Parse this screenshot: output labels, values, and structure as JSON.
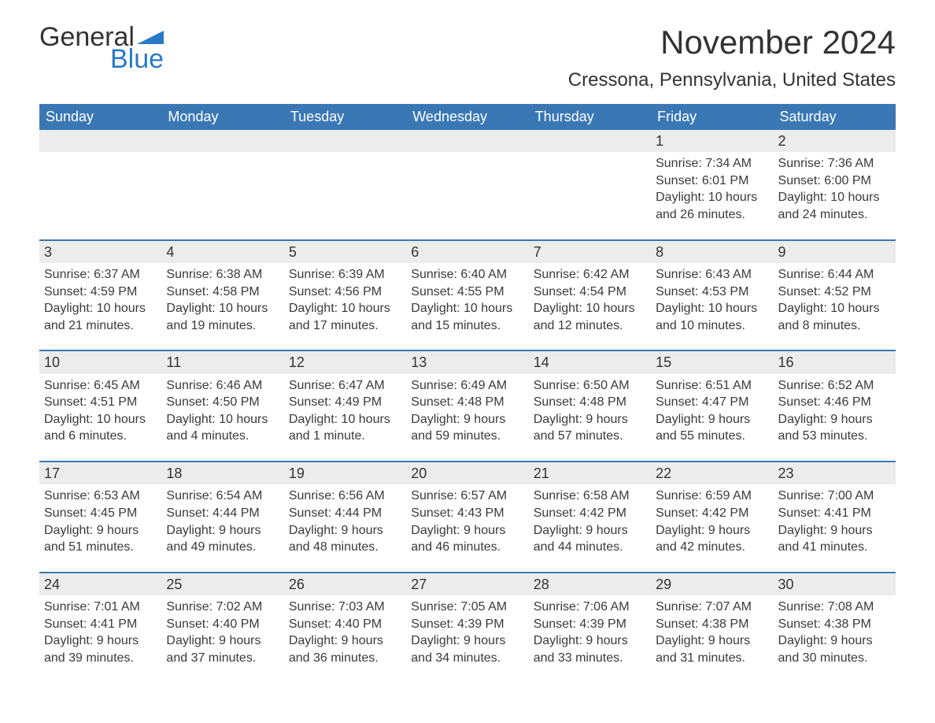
{
  "logo": {
    "text_top": "General",
    "text_bottom": "Blue",
    "flag_color": "#2979c9"
  },
  "title": "November 2024",
  "location": "Cressona, Pennsylvania, United States",
  "day_headers": [
    "Sunday",
    "Monday",
    "Tuesday",
    "Wednesday",
    "Thursday",
    "Friday",
    "Saturday"
  ],
  "colors": {
    "header_bg": "#3a78b5",
    "header_text": "#ffffff",
    "day_bar_bg": "#ececec",
    "day_bar_border": "#3a78b5",
    "text": "#3a3a3a",
    "logo_blue": "#2979c9",
    "background": "#ffffff"
  },
  "typography": {
    "title_fontsize": 42,
    "location_fontsize": 24,
    "header_fontsize": 18,
    "daynum_fontsize": 18,
    "body_fontsize": 16,
    "logo_fontsize": 34
  },
  "weeks": [
    [
      null,
      null,
      null,
      null,
      null,
      {
        "day": "1",
        "sunrise": "Sunrise: 7:34 AM",
        "sunset": "Sunset: 6:01 PM",
        "daylight1": "Daylight: 10 hours",
        "daylight2": "and 26 minutes."
      },
      {
        "day": "2",
        "sunrise": "Sunrise: 7:36 AM",
        "sunset": "Sunset: 6:00 PM",
        "daylight1": "Daylight: 10 hours",
        "daylight2": "and 24 minutes."
      }
    ],
    [
      {
        "day": "3",
        "sunrise": "Sunrise: 6:37 AM",
        "sunset": "Sunset: 4:59 PM",
        "daylight1": "Daylight: 10 hours",
        "daylight2": "and 21 minutes."
      },
      {
        "day": "4",
        "sunrise": "Sunrise: 6:38 AM",
        "sunset": "Sunset: 4:58 PM",
        "daylight1": "Daylight: 10 hours",
        "daylight2": "and 19 minutes."
      },
      {
        "day": "5",
        "sunrise": "Sunrise: 6:39 AM",
        "sunset": "Sunset: 4:56 PM",
        "daylight1": "Daylight: 10 hours",
        "daylight2": "and 17 minutes."
      },
      {
        "day": "6",
        "sunrise": "Sunrise: 6:40 AM",
        "sunset": "Sunset: 4:55 PM",
        "daylight1": "Daylight: 10 hours",
        "daylight2": "and 15 minutes."
      },
      {
        "day": "7",
        "sunrise": "Sunrise: 6:42 AM",
        "sunset": "Sunset: 4:54 PM",
        "daylight1": "Daylight: 10 hours",
        "daylight2": "and 12 minutes."
      },
      {
        "day": "8",
        "sunrise": "Sunrise: 6:43 AM",
        "sunset": "Sunset: 4:53 PM",
        "daylight1": "Daylight: 10 hours",
        "daylight2": "and 10 minutes."
      },
      {
        "day": "9",
        "sunrise": "Sunrise: 6:44 AM",
        "sunset": "Sunset: 4:52 PM",
        "daylight1": "Daylight: 10 hours",
        "daylight2": "and 8 minutes."
      }
    ],
    [
      {
        "day": "10",
        "sunrise": "Sunrise: 6:45 AM",
        "sunset": "Sunset: 4:51 PM",
        "daylight1": "Daylight: 10 hours",
        "daylight2": "and 6 minutes."
      },
      {
        "day": "11",
        "sunrise": "Sunrise: 6:46 AM",
        "sunset": "Sunset: 4:50 PM",
        "daylight1": "Daylight: 10 hours",
        "daylight2": "and 4 minutes."
      },
      {
        "day": "12",
        "sunrise": "Sunrise: 6:47 AM",
        "sunset": "Sunset: 4:49 PM",
        "daylight1": "Daylight: 10 hours",
        "daylight2": "and 1 minute."
      },
      {
        "day": "13",
        "sunrise": "Sunrise: 6:49 AM",
        "sunset": "Sunset: 4:48 PM",
        "daylight1": "Daylight: 9 hours",
        "daylight2": "and 59 minutes."
      },
      {
        "day": "14",
        "sunrise": "Sunrise: 6:50 AM",
        "sunset": "Sunset: 4:48 PM",
        "daylight1": "Daylight: 9 hours",
        "daylight2": "and 57 minutes."
      },
      {
        "day": "15",
        "sunrise": "Sunrise: 6:51 AM",
        "sunset": "Sunset: 4:47 PM",
        "daylight1": "Daylight: 9 hours",
        "daylight2": "and 55 minutes."
      },
      {
        "day": "16",
        "sunrise": "Sunrise: 6:52 AM",
        "sunset": "Sunset: 4:46 PM",
        "daylight1": "Daylight: 9 hours",
        "daylight2": "and 53 minutes."
      }
    ],
    [
      {
        "day": "17",
        "sunrise": "Sunrise: 6:53 AM",
        "sunset": "Sunset: 4:45 PM",
        "daylight1": "Daylight: 9 hours",
        "daylight2": "and 51 minutes."
      },
      {
        "day": "18",
        "sunrise": "Sunrise: 6:54 AM",
        "sunset": "Sunset: 4:44 PM",
        "daylight1": "Daylight: 9 hours",
        "daylight2": "and 49 minutes."
      },
      {
        "day": "19",
        "sunrise": "Sunrise: 6:56 AM",
        "sunset": "Sunset: 4:44 PM",
        "daylight1": "Daylight: 9 hours",
        "daylight2": "and 48 minutes."
      },
      {
        "day": "20",
        "sunrise": "Sunrise: 6:57 AM",
        "sunset": "Sunset: 4:43 PM",
        "daylight1": "Daylight: 9 hours",
        "daylight2": "and 46 minutes."
      },
      {
        "day": "21",
        "sunrise": "Sunrise: 6:58 AM",
        "sunset": "Sunset: 4:42 PM",
        "daylight1": "Daylight: 9 hours",
        "daylight2": "and 44 minutes."
      },
      {
        "day": "22",
        "sunrise": "Sunrise: 6:59 AM",
        "sunset": "Sunset: 4:42 PM",
        "daylight1": "Daylight: 9 hours",
        "daylight2": "and 42 minutes."
      },
      {
        "day": "23",
        "sunrise": "Sunrise: 7:00 AM",
        "sunset": "Sunset: 4:41 PM",
        "daylight1": "Daylight: 9 hours",
        "daylight2": "and 41 minutes."
      }
    ],
    [
      {
        "day": "24",
        "sunrise": "Sunrise: 7:01 AM",
        "sunset": "Sunset: 4:41 PM",
        "daylight1": "Daylight: 9 hours",
        "daylight2": "and 39 minutes."
      },
      {
        "day": "25",
        "sunrise": "Sunrise: 7:02 AM",
        "sunset": "Sunset: 4:40 PM",
        "daylight1": "Daylight: 9 hours",
        "daylight2": "and 37 minutes."
      },
      {
        "day": "26",
        "sunrise": "Sunrise: 7:03 AM",
        "sunset": "Sunset: 4:40 PM",
        "daylight1": "Daylight: 9 hours",
        "daylight2": "and 36 minutes."
      },
      {
        "day": "27",
        "sunrise": "Sunrise: 7:05 AM",
        "sunset": "Sunset: 4:39 PM",
        "daylight1": "Daylight: 9 hours",
        "daylight2": "and 34 minutes."
      },
      {
        "day": "28",
        "sunrise": "Sunrise: 7:06 AM",
        "sunset": "Sunset: 4:39 PM",
        "daylight1": "Daylight: 9 hours",
        "daylight2": "and 33 minutes."
      },
      {
        "day": "29",
        "sunrise": "Sunrise: 7:07 AM",
        "sunset": "Sunset: 4:38 PM",
        "daylight1": "Daylight: 9 hours",
        "daylight2": "and 31 minutes."
      },
      {
        "day": "30",
        "sunrise": "Sunrise: 7:08 AM",
        "sunset": "Sunset: 4:38 PM",
        "daylight1": "Daylight: 9 hours",
        "daylight2": "and 30 minutes."
      }
    ]
  ]
}
